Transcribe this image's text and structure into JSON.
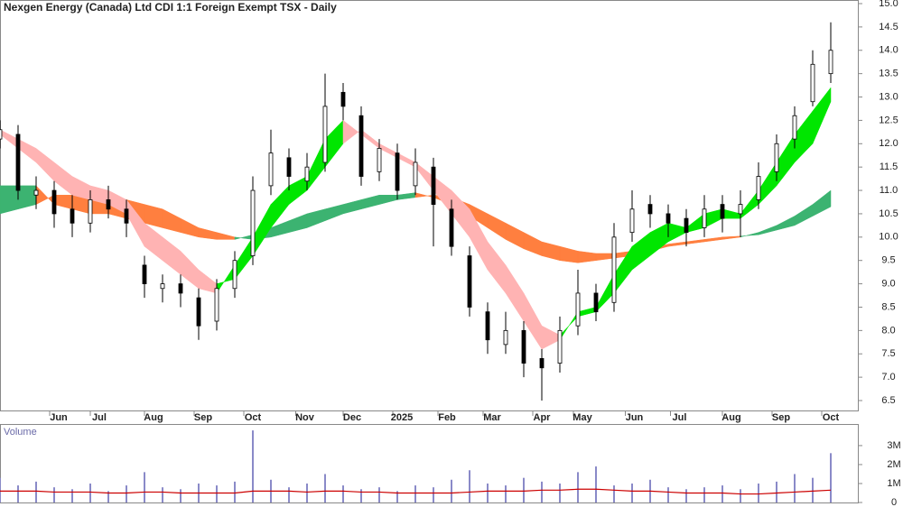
{
  "chart_data": {
    "type": "candlestick",
    "title": "Nexgen Energy (Canada) Ltd CDI 1:1 Foreign Exempt TSX - Daily",
    "x": [
      0,
      8,
      16,
      24,
      32,
      40,
      48,
      56,
      64,
      72,
      80,
      88,
      96,
      104,
      112,
      120,
      128,
      136,
      144,
      152,
      160,
      168,
      176,
      184,
      192,
      200,
      208,
      216,
      224,
      232,
      240,
      248,
      256,
      264,
      272,
      280,
      288,
      296,
      304,
      312,
      320,
      328,
      336,
      344,
      352,
      360,
      368
    ],
    "xlim": [
      0,
      380
    ],
    "xticks": [
      {
        "value": 22,
        "label": "Jun"
      },
      {
        "value": 40,
        "label": "Jul"
      },
      {
        "value": 64,
        "label": "Aug"
      },
      {
        "value": 86,
        "label": "Sep"
      },
      {
        "value": 108,
        "label": "Oct"
      },
      {
        "value": 131,
        "label": "Nov"
      },
      {
        "value": 152,
        "label": "Dec"
      },
      {
        "value": 174,
        "label": "2025"
      },
      {
        "value": 194,
        "label": "Feb"
      },
      {
        "value": 214,
        "label": "Mar"
      },
      {
        "value": 236,
        "label": "Apr"
      },
      {
        "value": 254,
        "label": "May"
      },
      {
        "value": 277,
        "label": "Jun"
      },
      {
        "value": 297,
        "label": "Jul"
      },
      {
        "value": 320,
        "label": "Aug"
      },
      {
        "value": 342,
        "label": "Sep"
      },
      {
        "value": 364,
        "label": "Oct"
      }
    ],
    "ylim": [
      6.5,
      15.0
    ],
    "yticks": [
      6.5,
      {
        "value": 7,
        "label": "7.0"
      },
      7.5,
      {
        "value": 8,
        "label": "8.0"
      },
      8.5,
      {
        "value": 9,
        "label": "9.0"
      },
      9.5,
      {
        "value": 10,
        "label": "10.0"
      },
      10.5,
      {
        "value": 11,
        "label": "11.0"
      },
      11.5,
      {
        "value": 12,
        "label": "12.0"
      },
      12.5,
      {
        "value": 13,
        "label": "13.0"
      },
      13.5,
      {
        "value": 14,
        "label": "14.0"
      },
      14.5,
      {
        "value": 15,
        "label": "15.0"
      }
    ],
    "open": [
      12.1,
      12.2,
      10.9,
      11.0,
      10.6,
      10.3,
      10.8,
      10.6,
      9.4,
      8.9,
      9.0,
      8.7,
      8.2,
      8.9,
      9.6,
      11.1,
      11.7,
      11.2,
      11.6,
      13.1,
      12.6,
      11.4,
      11.8,
      11.1,
      11.5,
      10.6,
      9.6,
      8.4,
      7.7,
      8.0,
      7.4,
      7.3,
      8.1,
      8.8,
      8.6,
      10.1,
      10.7,
      10.5,
      10.4,
      10.2,
      10.7,
      10.5,
      10.8,
      11.4,
      12.1,
      12.9,
      13.5
    ],
    "high": [
      12.5,
      12.4,
      11.3,
      11.2,
      10.9,
      11.0,
      11.1,
      10.8,
      9.6,
      9.2,
      9.2,
      8.9,
      9.1,
      9.7,
      11.3,
      12.3,
      11.9,
      11.8,
      13.5,
      13.3,
      12.8,
      12.1,
      12.0,
      11.9,
      11.7,
      10.8,
      9.8,
      8.6,
      8.4,
      8.2,
      7.6,
      8.3,
      9.3,
      9.0,
      10.3,
      11.0,
      10.9,
      10.7,
      10.6,
      10.9,
      10.9,
      11.0,
      11.6,
      12.2,
      12.8,
      14.0,
      14.6
    ],
    "low": [
      11.9,
      10.8,
      10.6,
      10.2,
      10.0,
      10.1,
      10.4,
      10.0,
      8.7,
      8.6,
      8.5,
      7.8,
      8.0,
      8.7,
      9.4,
      10.9,
      11.0,
      11.0,
      11.4,
      12.5,
      11.1,
      11.2,
      10.8,
      10.9,
      9.8,
      9.6,
      8.3,
      7.5,
      7.5,
      7.0,
      6.5,
      7.1,
      7.9,
      8.2,
      8.4,
      9.9,
      10.2,
      10.0,
      9.8,
      10.0,
      10.1,
      10.0,
      10.6,
      11.2,
      11.9,
      12.8,
      13.3
    ],
    "close": [
      12.3,
      11.0,
      11.0,
      10.5,
      10.3,
      10.8,
      10.6,
      10.3,
      9.0,
      9.0,
      8.8,
      8.1,
      8.9,
      9.5,
      11.0,
      11.8,
      11.3,
      11.5,
      12.8,
      12.8,
      11.3,
      11.9,
      11.0,
      11.6,
      10.7,
      9.8,
      8.5,
      7.8,
      8.0,
      7.3,
      7.2,
      8.0,
      8.8,
      8.4,
      10.0,
      10.6,
      10.5,
      10.3,
      10.1,
      10.6,
      10.4,
      10.7,
      11.3,
      12.0,
      12.6,
      13.7,
      14.0
    ],
    "ribbons": [
      {
        "up_color": "#00e600",
        "down_color": "#ffb3b3",
        "a": [
          12.2,
          11.9,
          11.6,
          11.2,
          10.9,
          10.8,
          10.7,
          10.5,
          9.8,
          9.5,
          9.2,
          8.9,
          8.8,
          9.4,
          10.0,
          10.7,
          11.1,
          11.3,
          12.1,
          12.5,
          12.2,
          11.9,
          11.7,
          11.5,
          11.0,
          10.5,
          10.0,
          9.3,
          8.8,
          8.2,
          7.6,
          7.8,
          8.4,
          8.5,
          9.2,
          9.8,
          10.1,
          10.3,
          10.2,
          10.5,
          10.6,
          10.5,
          11.0,
          11.6,
          12.2,
          12.7,
          13.2
        ],
        "b": [
          12.3,
          12.1,
          11.9,
          11.6,
          11.3,
          11.1,
          11.0,
          10.8,
          10.3,
          10.0,
          9.7,
          9.3,
          9.0,
          9.1,
          9.6,
          10.2,
          10.7,
          11.0,
          11.5,
          12.0,
          12.3,
          12.0,
          11.8,
          11.6,
          11.3,
          11.0,
          10.6,
          9.9,
          9.4,
          8.8,
          8.1,
          7.9,
          8.3,
          8.4,
          8.8,
          9.3,
          9.6,
          9.9,
          10.1,
          10.2,
          10.4,
          10.4,
          10.7,
          11.1,
          11.6,
          12.0,
          12.9
        ]
      },
      {
        "up_color": "#3cb371",
        "down_color": "#ff7f3f",
        "a": [
          11.1,
          11.1,
          11.1,
          10.7,
          10.6,
          10.5,
          10.5,
          10.4,
          10.3,
          10.2,
          10.1,
          10.0,
          9.95,
          9.95,
          10.05,
          10.2,
          10.35,
          10.5,
          10.6,
          10.7,
          10.8,
          10.9,
          10.9,
          10.95,
          10.85,
          10.7,
          10.45,
          10.2,
          9.95,
          9.75,
          9.6,
          9.5,
          9.45,
          9.5,
          9.55,
          9.6,
          9.7,
          9.8,
          9.85,
          9.9,
          9.95,
          10.0,
          10.1,
          10.25,
          10.45,
          10.7,
          11.0
        ],
        "b": [
          10.5,
          10.6,
          10.7,
          10.9,
          10.9,
          10.9,
          10.8,
          10.8,
          10.7,
          10.6,
          10.4,
          10.2,
          10.1,
          10.0,
          9.95,
          10.0,
          10.1,
          10.2,
          10.35,
          10.5,
          10.6,
          10.7,
          10.8,
          10.85,
          10.9,
          10.85,
          10.7,
          10.5,
          10.3,
          10.1,
          9.9,
          9.8,
          9.7,
          9.65,
          9.65,
          9.7,
          9.75,
          9.85,
          9.9,
          9.95,
          10.0,
          10.02,
          10.05,
          10.15,
          10.25,
          10.45,
          10.65
        ]
      }
    ],
    "volume": {
      "label": "Volume",
      "color": "#8a8ac8",
      "ma_color": "#cc0000",
      "values": [
        1.3,
        0.9,
        1.1,
        0.8,
        0.7,
        1.0,
        0.6,
        0.9,
        1.6,
        0.8,
        0.7,
        1.0,
        0.9,
        1.1,
        3.8,
        1.2,
        0.8,
        1.0,
        1.5,
        0.9,
        0.7,
        0.8,
        0.6,
        0.9,
        0.8,
        1.2,
        1.7,
        1.0,
        0.9,
        1.3,
        1.1,
        1.0,
        1.6,
        1.9,
        0.9,
        1.0,
        1.2,
        0.8,
        0.7,
        0.8,
        0.9,
        0.7,
        1.0,
        1.1,
        1.5,
        1.3,
        2.6
      ],
      "ma": [
        0.6,
        0.6,
        0.6,
        0.55,
        0.55,
        0.55,
        0.5,
        0.5,
        0.55,
        0.55,
        0.5,
        0.5,
        0.5,
        0.5,
        0.6,
        0.6,
        0.6,
        0.55,
        0.6,
        0.6,
        0.55,
        0.55,
        0.5,
        0.5,
        0.5,
        0.5,
        0.55,
        0.6,
        0.6,
        0.6,
        0.65,
        0.65,
        0.7,
        0.7,
        0.65,
        0.6,
        0.6,
        0.55,
        0.5,
        0.5,
        0.5,
        0.45,
        0.45,
        0.5,
        0.55,
        0.6,
        0.65
      ],
      "ylim": [
        0,
        3.9
      ],
      "yticks": [
        0,
        {
          "value": 1,
          "label": "1M"
        },
        {
          "value": 2,
          "label": "2M"
        },
        {
          "value": 3,
          "label": "3M"
        }
      ]
    }
  }
}
